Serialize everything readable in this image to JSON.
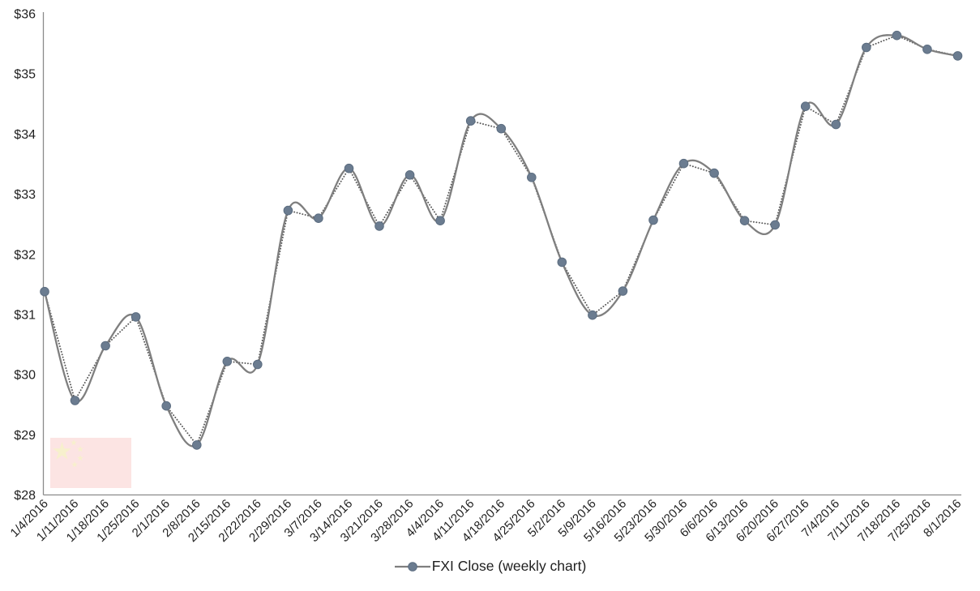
{
  "chart_data": {
    "type": "line",
    "title": "",
    "legend": "FXI Close (weekly chart)",
    "legend_position": "bottom-center",
    "x_labels": [
      "1/4/2016",
      "1/11/2016",
      "1/18/2016",
      "1/25/2016",
      "2/1/2016",
      "2/8/2016",
      "2/15/2016",
      "2/22/2016",
      "2/29/2016",
      "3/7/2016",
      "3/14/2016",
      "3/21/2016",
      "3/28/2016",
      "4/4/2016",
      "4/11/2016",
      "4/18/2016",
      "4/25/2016",
      "5/2/2016",
      "5/9/2016",
      "5/16/2016",
      "5/23/2016",
      "5/30/2016",
      "6/6/2016",
      "6/13/2016",
      "6/20/2016",
      "6/27/2016",
      "7/4/2016",
      "7/11/2016",
      "7/18/2016",
      "7/25/2016",
      "8/1/2016"
    ],
    "values": [
      31.38,
      29.57,
      30.48,
      30.96,
      29.48,
      28.83,
      30.22,
      30.17,
      32.73,
      32.6,
      33.43,
      32.47,
      33.32,
      32.56,
      34.22,
      34.09,
      33.28,
      31.87,
      30.99,
      31.39,
      32.57,
      33.51,
      33.35,
      32.56,
      32.49,
      34.46,
      34.16,
      35.44,
      35.64,
      35.41,
      35.3
    ],
    "y_ticks": [
      "$28",
      "$29",
      "$30",
      "$31",
      "$32",
      "$33",
      "$34",
      "$35",
      "$36"
    ],
    "ylim": [
      28,
      36
    ],
    "xlabel": "",
    "ylabel": "",
    "grid": "off",
    "line_styles": {
      "smooth_line_color": "#7f7f7f",
      "dotted_line_color": "#595959",
      "marker_fill": "#6b7c90",
      "marker_edge": "#5c6d80"
    },
    "axis_color": "#8a8a8a",
    "label_color": "#1f1f1f"
  },
  "watermark": {
    "icon": "china-flag",
    "background_color": "#fce4e3",
    "star_color": "#f7f0cd"
  }
}
